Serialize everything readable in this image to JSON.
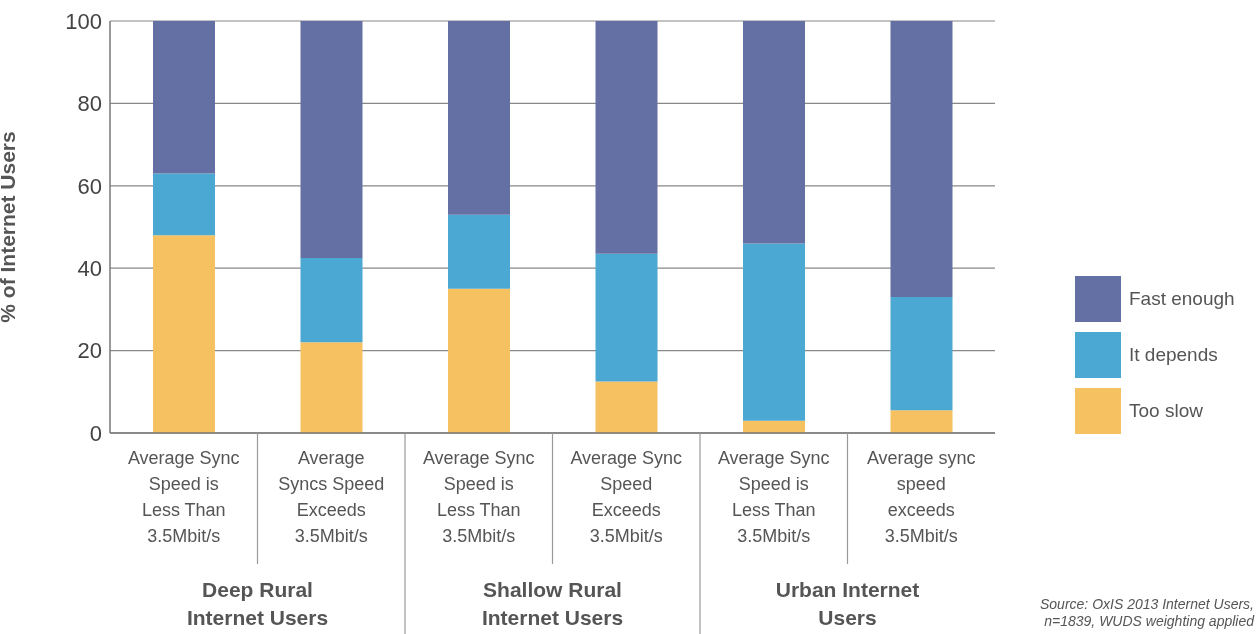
{
  "chart_data": {
    "type": "bar",
    "stacked": true,
    "ylabel": "% of Internet Users",
    "categories": [
      "Average Sync Speed is Less Than 3.5Mbit/s",
      "Average Syncs Speed Exceeds 3.5Mbit/s",
      "Average Sync Speed is Less Than 3.5Mbit/s",
      "Average Sync Speed Exceeds 3.5Mbit/s",
      "Average Sync Speed is Less Than 3.5Mbit/s",
      "Average sync speed exceeds 3.5Mbit/s"
    ],
    "series": [
      {
        "name": "Too slow",
        "color": "#f6c160",
        "values": [
          48,
          22,
          35,
          12.5,
          3,
          5.5
        ]
      },
      {
        "name": "It depends",
        "color": "#4ba8d3",
        "values": [
          15,
          20.5,
          18,
          31,
          43,
          27.5
        ]
      },
      {
        "name": "Fast enough",
        "color": "#6470a3",
        "values": [
          37,
          57.5,
          47,
          56.5,
          54,
          67
        ]
      }
    ],
    "ylim": [
      0,
      100
    ],
    "yticks": [
      0,
      20,
      40,
      60,
      80,
      100
    ],
    "grid": "y",
    "legend": "right",
    "annotations": [
      "Deep Rural Internet Users",
      "Shallow Rural Internet Users",
      "Urban Internet Users",
      "Source: OxIS 2013 Internet Users, n=1839, WUDS weighting applied"
    ]
  }
}
